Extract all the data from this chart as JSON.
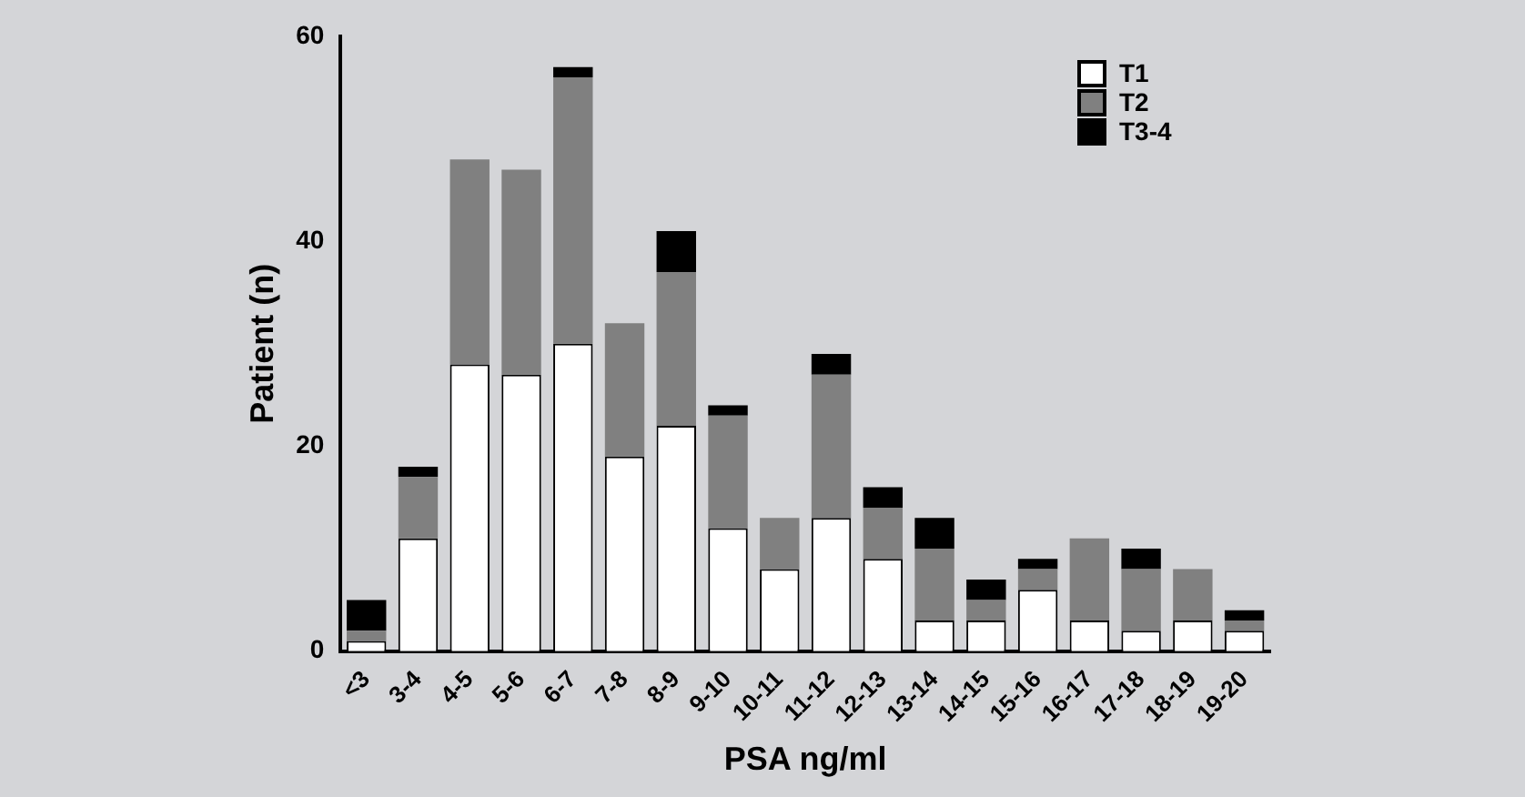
{
  "chart_data": {
    "type": "bar",
    "stacked": true,
    "xlabel": "PSA ng/ml",
    "ylabel": "Patient (n)",
    "categories": [
      "<3",
      "3-4",
      "4-5",
      "5-6",
      "6-7",
      "7-8",
      "8-9",
      "9-10",
      "10-11",
      "11-12",
      "12-13",
      "13-14",
      "14-15",
      "15-16",
      "16-17",
      "17-18",
      "18-19",
      "19-20"
    ],
    "series": [
      {
        "name": "T1",
        "color": "#ffffff",
        "values": [
          1,
          11,
          28,
          27,
          30,
          19,
          22,
          12,
          8,
          13,
          9,
          3,
          3,
          6,
          3,
          2,
          3,
          2
        ]
      },
      {
        "name": "T2",
        "color": "#808080",
        "values": [
          1,
          6,
          20,
          20,
          26,
          13,
          15,
          11,
          5,
          14,
          5,
          7,
          2,
          2,
          8,
          6,
          5,
          1
        ]
      },
      {
        "name": "T3-4",
        "color": "#000000",
        "values": [
          3,
          1,
          0,
          0,
          1,
          0,
          4,
          1,
          0,
          2,
          2,
          3,
          2,
          1,
          0,
          2,
          0,
          1
        ]
      }
    ],
    "ylim": [
      0,
      60
    ],
    "yticks": [
      0,
      20,
      40,
      60
    ],
    "grid": false,
    "legend": "top right"
  }
}
